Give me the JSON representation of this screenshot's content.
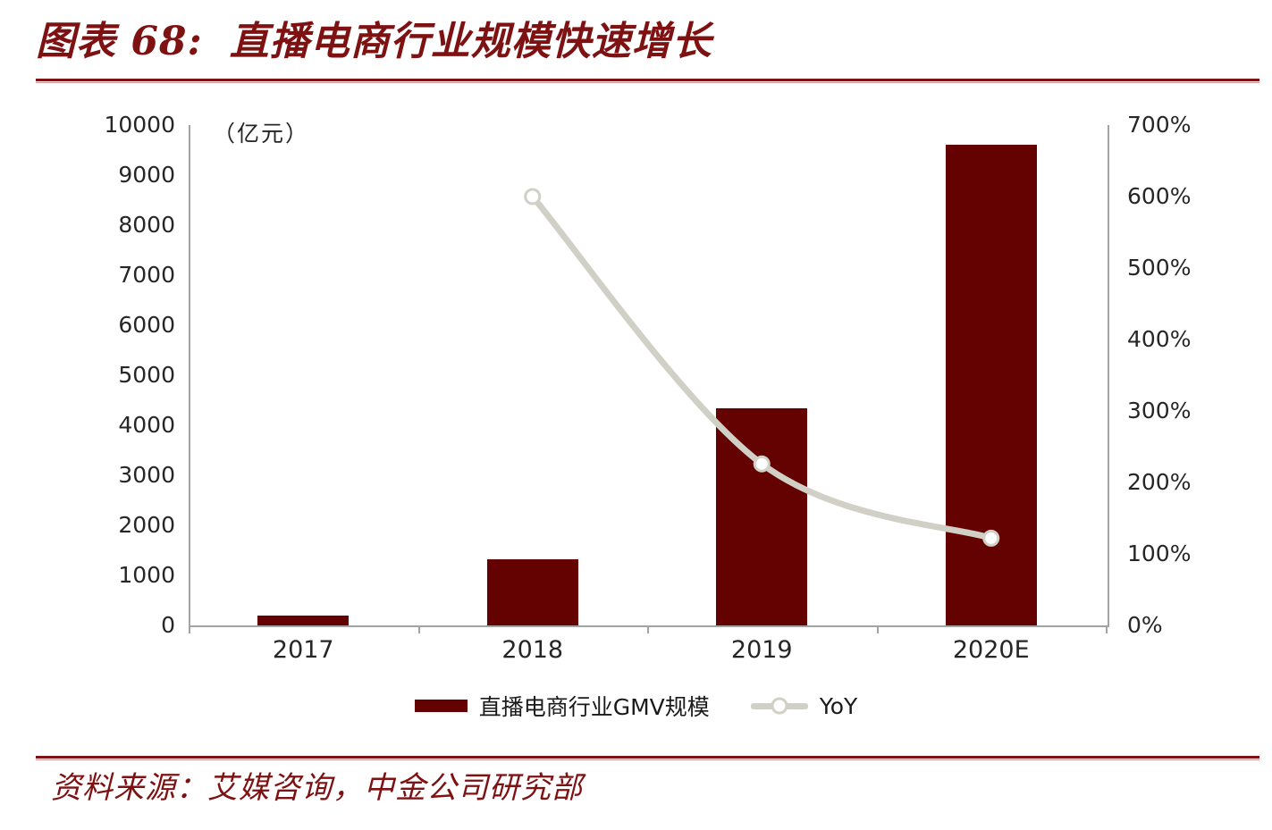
{
  "header": {
    "title_prefix": "图表 68:",
    "title": "直播电商行业规模快速增长"
  },
  "footer": {
    "source": "资料来源：艾媒咨询，中金公司研究部"
  },
  "legend": {
    "gmv_label": "直播电商行业GMV规模",
    "yoy_label": "YoY"
  },
  "colors": {
    "bar": "#640201",
    "line": "#D0D0C6",
    "accent": "#7E1112",
    "accent_light": "#C89898",
    "axis": "#A3A3A3",
    "text": "#262626"
  },
  "chart_data": {
    "type": "bar",
    "subtype": "combo-bar-line-dual-axis",
    "categories": [
      "2017",
      "2018",
      "2019",
      "2020E"
    ],
    "series": [
      {
        "name": "直播电商行业GMV规模",
        "type": "bar",
        "axis": "left",
        "unit": "亿元",
        "values": [
          190,
          1330,
          4338,
          9610
        ]
      },
      {
        "name": "YoY",
        "type": "line",
        "axis": "right",
        "unit": "%",
        "values": [
          null,
          600,
          226,
          122
        ]
      }
    ],
    "left_axis": {
      "label": "（亿元）",
      "min": 0,
      "max": 10000,
      "step": 1000,
      "ticks": [
        10000,
        9000,
        8000,
        7000,
        6000,
        5000,
        4000,
        3000,
        2000,
        1000,
        0
      ]
    },
    "right_axis": {
      "min": 0,
      "max": 700,
      "step": 100,
      "unit": "%",
      "ticks": [
        700,
        600,
        500,
        400,
        300,
        200,
        100,
        0
      ]
    },
    "grid": false,
    "legend_position": "bottom",
    "title": "图表 68: 直播电商行业规模快速增长"
  }
}
